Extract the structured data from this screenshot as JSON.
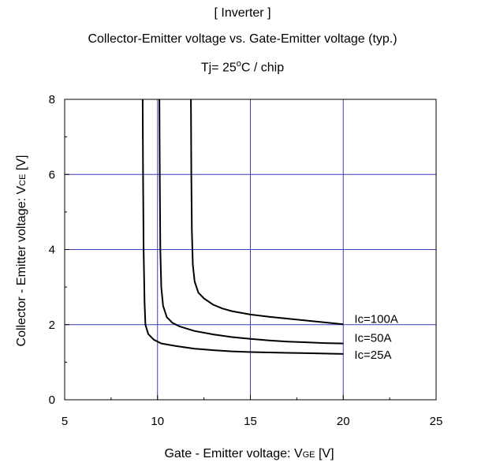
{
  "chart_data": {
    "type": "line",
    "title": "[ Inverter ]",
    "subtitle": "Collector-Emitter voltage  vs. Gate-Emitter voltage (typ.)",
    "condition": {
      "prefix": "Tj= 25",
      "sup": "o",
      "suffix": "C / chip"
    },
    "xlabel": {
      "main": "Gate - Emitter voltage: V",
      "sub": "GE",
      "unit": " [V]"
    },
    "ylabel": {
      "main": "Collector - Emitter voltage: V",
      "sub": "CE",
      "unit": " [V]"
    },
    "xlim": [
      5,
      25
    ],
    "ylim": [
      0,
      8
    ],
    "xticks": [
      5,
      10,
      15,
      20,
      25
    ],
    "yticks": [
      0,
      2,
      4,
      6,
      8
    ],
    "grid": true,
    "grid_color": "#3b3bbd",
    "line_color": "#000000",
    "series": [
      {
        "name": "Ic=25A",
        "x": [
          9.2,
          9.22,
          9.25,
          9.3,
          9.35,
          9.5,
          9.8,
          10.2,
          11,
          12,
          13,
          14,
          15,
          16,
          17,
          18,
          19,
          20
        ],
        "y": [
          8,
          6,
          4,
          2.6,
          2.0,
          1.75,
          1.6,
          1.5,
          1.43,
          1.36,
          1.32,
          1.29,
          1.27,
          1.26,
          1.25,
          1.24,
          1.23,
          1.22
        ]
      },
      {
        "name": "Ic=50A",
        "x": [
          10.1,
          10.12,
          10.15,
          10.2,
          10.3,
          10.5,
          10.8,
          11.2,
          12,
          13,
          14,
          15,
          16,
          17,
          18,
          19,
          20
        ],
        "y": [
          8,
          6,
          4,
          3.0,
          2.5,
          2.2,
          2.05,
          1.95,
          1.83,
          1.74,
          1.67,
          1.62,
          1.58,
          1.55,
          1.53,
          1.51,
          1.5
        ]
      },
      {
        "name": "Ic=100A",
        "x": [
          11.8,
          11.82,
          11.85,
          11.9,
          12.0,
          12.2,
          12.5,
          13,
          13.5,
          14,
          15,
          16,
          17,
          18,
          19,
          20
        ],
        "y": [
          8,
          6,
          4.5,
          3.6,
          3.15,
          2.85,
          2.7,
          2.53,
          2.43,
          2.36,
          2.27,
          2.21,
          2.16,
          2.11,
          2.06,
          2.01
        ]
      }
    ],
    "series_labels": [
      {
        "text": "Ic=100A",
        "y": 2.15
      },
      {
        "text": "Ic=50A",
        "y": 1.65
      },
      {
        "text": "Ic=25A",
        "y": 1.2
      }
    ]
  }
}
